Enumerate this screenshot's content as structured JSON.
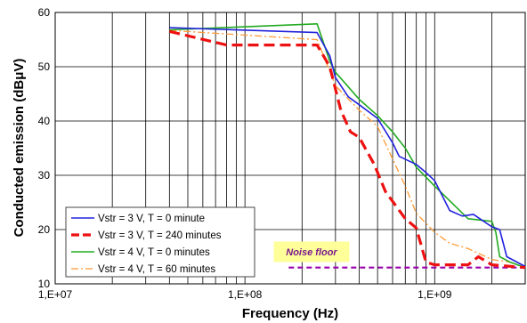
{
  "chart_data": {
    "type": "line",
    "title": "",
    "xlabel": "Frequency (Hz)",
    "ylabel": "Conducted emission (dBμV)",
    "xscale": "log",
    "xlim": [
      10000000,
      3000000000
    ],
    "ylim": [
      10,
      60
    ],
    "grid": "on",
    "x_ticks": [
      {
        "value": 10000000,
        "label": "1,E+07"
      },
      {
        "value": 100000000,
        "label": "1,E+08"
      },
      {
        "value": 1000000000,
        "label": "1,E+09"
      }
    ],
    "y_ticks": [
      {
        "value": 10,
        "label": "10"
      },
      {
        "value": 20,
        "label": "20"
      },
      {
        "value": 30,
        "label": "30"
      },
      {
        "value": 40,
        "label": "40"
      },
      {
        "value": 50,
        "label": "50"
      },
      {
        "value": 60,
        "label": "60"
      }
    ],
    "legend_position": "bottom-left",
    "series": [
      {
        "name": "Vstr = 3 V, T = 0 minute",
        "color": "#2222dd",
        "style": "solid",
        "x": [
          40000000,
          240000000,
          280000000,
          300000000,
          350000000,
          400000000,
          500000000,
          600000000,
          650000000,
          800000000,
          900000000,
          1000000000,
          1200000000,
          1400000000,
          1600000000,
          2000000000,
          2200000000,
          2400000000,
          3000000000
        ],
        "y": [
          57.2,
          56.3,
          52,
          48,
          44.5,
          43,
          40.5,
          36,
          33.5,
          32,
          30.5,
          29,
          23.5,
          22.5,
          22.8,
          20.5,
          20,
          15,
          13.2
        ]
      },
      {
        "name": "Vstr = 3 V, T = 240 minutes",
        "color": "#ee1111",
        "style": "dashed",
        "x": [
          40000000,
          80000000,
          240000000,
          280000000,
          320000000,
          360000000,
          400000000,
          480000000,
          550000000,
          700000000,
          800000000,
          900000000,
          1000000000,
          1500000000,
          1700000000,
          2000000000,
          3000000000
        ],
        "y": [
          56.5,
          54,
          54,
          50,
          42,
          38,
          37,
          32,
          27,
          22,
          20.3,
          14,
          13.5,
          13.5,
          15,
          13.5,
          13
        ]
      },
      {
        "name": "Vstr = 4 V, T = 0 minutes",
        "color": "#22aa22",
        "style": "solid",
        "x": [
          40000000,
          240000000,
          280000000,
          300000000,
          400000000,
          500000000,
          600000000,
          700000000,
          800000000,
          1000000000,
          1500000000,
          2000000000,
          2100000000,
          2200000000,
          2500000000,
          3000000000
        ],
        "y": [
          56.8,
          57.9,
          51,
          49,
          44,
          41,
          38,
          35,
          31.5,
          28,
          22,
          21.5,
          19.5,
          15,
          14,
          13
        ]
      },
      {
        "name": "Vstr = 4 V, T = 60 minutes",
        "color": "#ff9933",
        "style": "dashdot",
        "x": [
          40000000,
          240000000,
          300000000,
          400000000,
          500000000,
          600000000,
          700000000,
          800000000,
          1000000000,
          1200000000,
          1500000000,
          2000000000,
          2500000000,
          3000000000
        ],
        "y": [
          56.7,
          55,
          46.5,
          42,
          39,
          33,
          28,
          23,
          19.5,
          17.5,
          16.5,
          14.5,
          14,
          13
        ]
      },
      {
        "name": "Noise floor",
        "color": "#9900aa",
        "style": "dotted",
        "x": [
          170000000,
          3000000000
        ],
        "y": [
          13,
          13
        ]
      }
    ],
    "annotations": [
      {
        "text": "Noise floor"
      }
    ]
  }
}
